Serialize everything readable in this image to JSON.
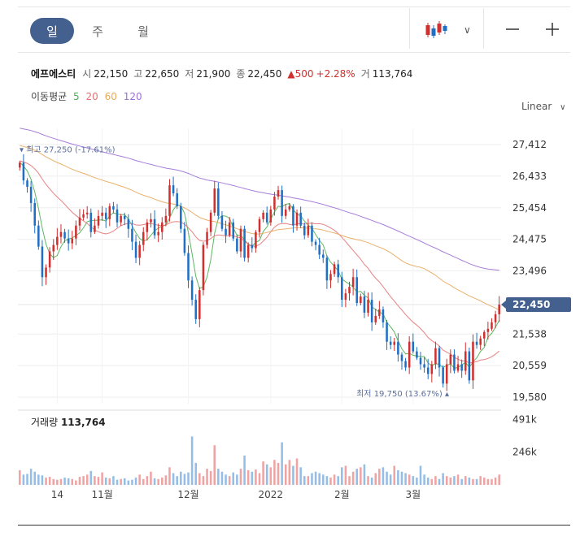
{
  "periods": [
    "일",
    "주",
    "월"
  ],
  "active_period": "일",
  "stock": {
    "name": "에프에스티",
    "open_label": "시",
    "open": "22,150",
    "high_label": "고",
    "high": "22,650",
    "low_label": "저",
    "low": "21,900",
    "close_label": "종",
    "close": "22,450",
    "change": "▲500",
    "change_pct": "+2.28%",
    "volume_label": "거",
    "volume": "113,764"
  },
  "ma": {
    "label": "이동평균",
    "periods": [
      {
        "value": "5",
        "color": "#4caf50"
      },
      {
        "value": "20",
        "color": "#e57373"
      },
      {
        "value": "60",
        "color": "#e8a95c"
      },
      {
        "value": "120",
        "color": "#9c6fd6"
      }
    ]
  },
  "scale_mode": "Linear",
  "colors": {
    "up": "#d0302f",
    "down": "#1f6fc5",
    "accent": "#44608f",
    "ma5": "#4caf50",
    "ma20": "#e57373",
    "ma60": "#e8a95c",
    "ma120": "#9c6fd6"
  },
  "chart_data": {
    "type": "candlestick",
    "y_ticks": [
      "27,412",
      "26,433",
      "25,454",
      "24,475",
      "23,496",
      "22,450",
      "21,538",
      "20,559",
      "19,580"
    ],
    "ylim": [
      19580,
      27412
    ],
    "x_ticks": [
      {
        "label": "14",
        "index": 10
      },
      {
        "label": "11월",
        "index": 22
      },
      {
        "label": "12월",
        "index": 45
      },
      {
        "label": "2022",
        "index": 67
      },
      {
        "label": "2월",
        "index": 86
      },
      {
        "label": "3월",
        "index": 105
      }
    ],
    "current_price": "22,450",
    "current_value": 22450,
    "max_label": "최고 27,250 (-17.61%)",
    "max_value": 27250,
    "min_label": "최저 19,750 (13.67%)",
    "min_value": 19750,
    "volume_title": "거래량",
    "volume_value": "113,764",
    "volume_ticks": [
      "491k",
      "246k"
    ],
    "volume_tick_values": [
      491000,
      246000
    ],
    "closes": [
      26850,
      26300,
      26100,
      25600,
      24900,
      24250,
      23300,
      23600,
      24100,
      24300,
      24550,
      24700,
      24500,
      24350,
      24500,
      24900,
      25150,
      25250,
      25300,
      24700,
      24900,
      25200,
      25300,
      25100,
      25500,
      25400,
      25000,
      25200,
      25100,
      24800,
      24400,
      23900,
      24300,
      24700,
      25000,
      25100,
      24600,
      24700,
      25000,
      25200,
      26150,
      25900,
      25500,
      24800,
      24050,
      23200,
      22600,
      22000,
      22900,
      24300,
      24700,
      25300,
      26050,
      25200,
      24800,
      24600,
      25000,
      24500,
      24100,
      24800,
      23900,
      24300,
      24200,
      24700,
      25100,
      25300,
      25000,
      25400,
      25800,
      26000,
      25200,
      25400,
      25500,
      24900,
      25300,
      24900,
      24600,
      24900,
      24400,
      24300,
      24000,
      23900,
      23200,
      23400,
      23700,
      23300,
      22600,
      22800,
      23000,
      23300,
      22500,
      22700,
      22200,
      22600,
      21900,
      22100,
      22300,
      21900,
      21300,
      21200,
      21300,
      20900,
      20700,
      20500,
      21300,
      21000,
      20800,
      20600,
      20500,
      20300,
      20600,
      21100,
      20500,
      20000,
      20600,
      20900,
      20400,
      20600,
      20400,
      21000,
      20100,
      21300,
      21200,
      21400,
      21600,
      21700,
      21900,
      22150,
      22450
    ],
    "volume_series": [
      100,
      70,
      75,
      110,
      90,
      70,
      65,
      50,
      55,
      40,
      35,
      40,
      50,
      45,
      40,
      30,
      55,
      60,
      70,
      95,
      60,
      55,
      85,
      50,
      45,
      60,
      35,
      40,
      45,
      30,
      35,
      50,
      70,
      40,
      60,
      90,
      45,
      40,
      50,
      65,
      120,
      80,
      60,
      90,
      75,
      85,
      330,
      150,
      80,
      60,
      110,
      95,
      270,
      110,
      90,
      70,
      60,
      85,
      70,
      110,
      200,
      100,
      90,
      105,
      80,
      160,
      140,
      120,
      170,
      150,
      290,
      140,
      170,
      130,
      180,
      120,
      60,
      60,
      80,
      90,
      80,
      70,
      60,
      50,
      70,
      60,
      120,
      130,
      60,
      90,
      110,
      120,
      140,
      60,
      50,
      80,
      110,
      120,
      90,
      70,
      130,
      100,
      90,
      80,
      70,
      60,
      50,
      130,
      70,
      50,
      40,
      60,
      40,
      80,
      60,
      50,
      60,
      70,
      40,
      60,
      50,
      40,
      40,
      60,
      50,
      40,
      40,
      50,
      70
    ]
  }
}
